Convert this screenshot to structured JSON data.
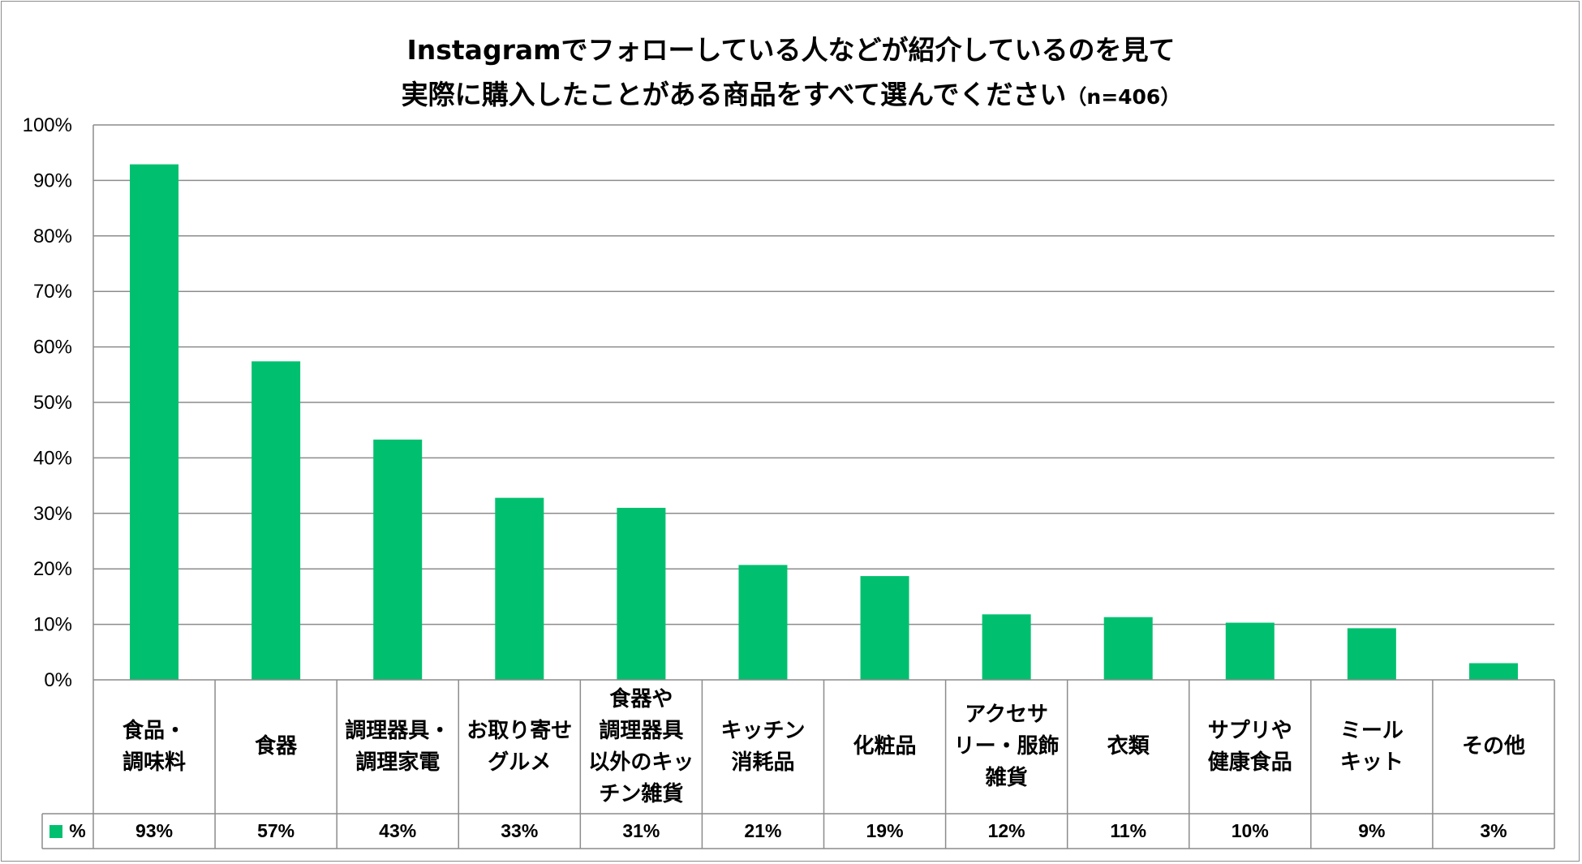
{
  "title": {
    "line1": "Instagramでフォローしている人などが紹介しているのを見て",
    "line2": "実際に購入したことがある商品をすべて選んでください",
    "note": "（n=406）"
  },
  "colors": {
    "bar": "#00c06f",
    "grid": "#8c8c8c"
  },
  "chart_data": {
    "type": "bar",
    "categories": [
      "食品・\n調味料",
      "食器",
      "調理器具・\n調理家電",
      "お取り寄せ\nグルメ",
      "食器や\n調理器具\n以外のキッ\nチン雑貨",
      "キッチン\n消耗品",
      "化粧品",
      "アクセサ\nリー・服飾\n雑貨",
      "衣類",
      "サプリや\n健康食品",
      "ミール\nキット",
      "その他"
    ],
    "series": [
      {
        "name": "%",
        "values": [
          92.9,
          57.4,
          43.3,
          32.8,
          31.0,
          20.7,
          18.7,
          11.8,
          11.3,
          10.3,
          9.3,
          3.0
        ],
        "labels": [
          "93%",
          "57%",
          "43%",
          "33%",
          "31%",
          "21%",
          "19%",
          "12%",
          "11%",
          "10%",
          "9%",
          "3%"
        ]
      }
    ],
    "yticks": [
      "0%",
      "10%",
      "20%",
      "30%",
      "40%",
      "50%",
      "60%",
      "70%",
      "80%",
      "90%",
      "100%"
    ],
    "ylim": [
      0,
      100
    ],
    "grid": true,
    "legend": "table-left"
  }
}
